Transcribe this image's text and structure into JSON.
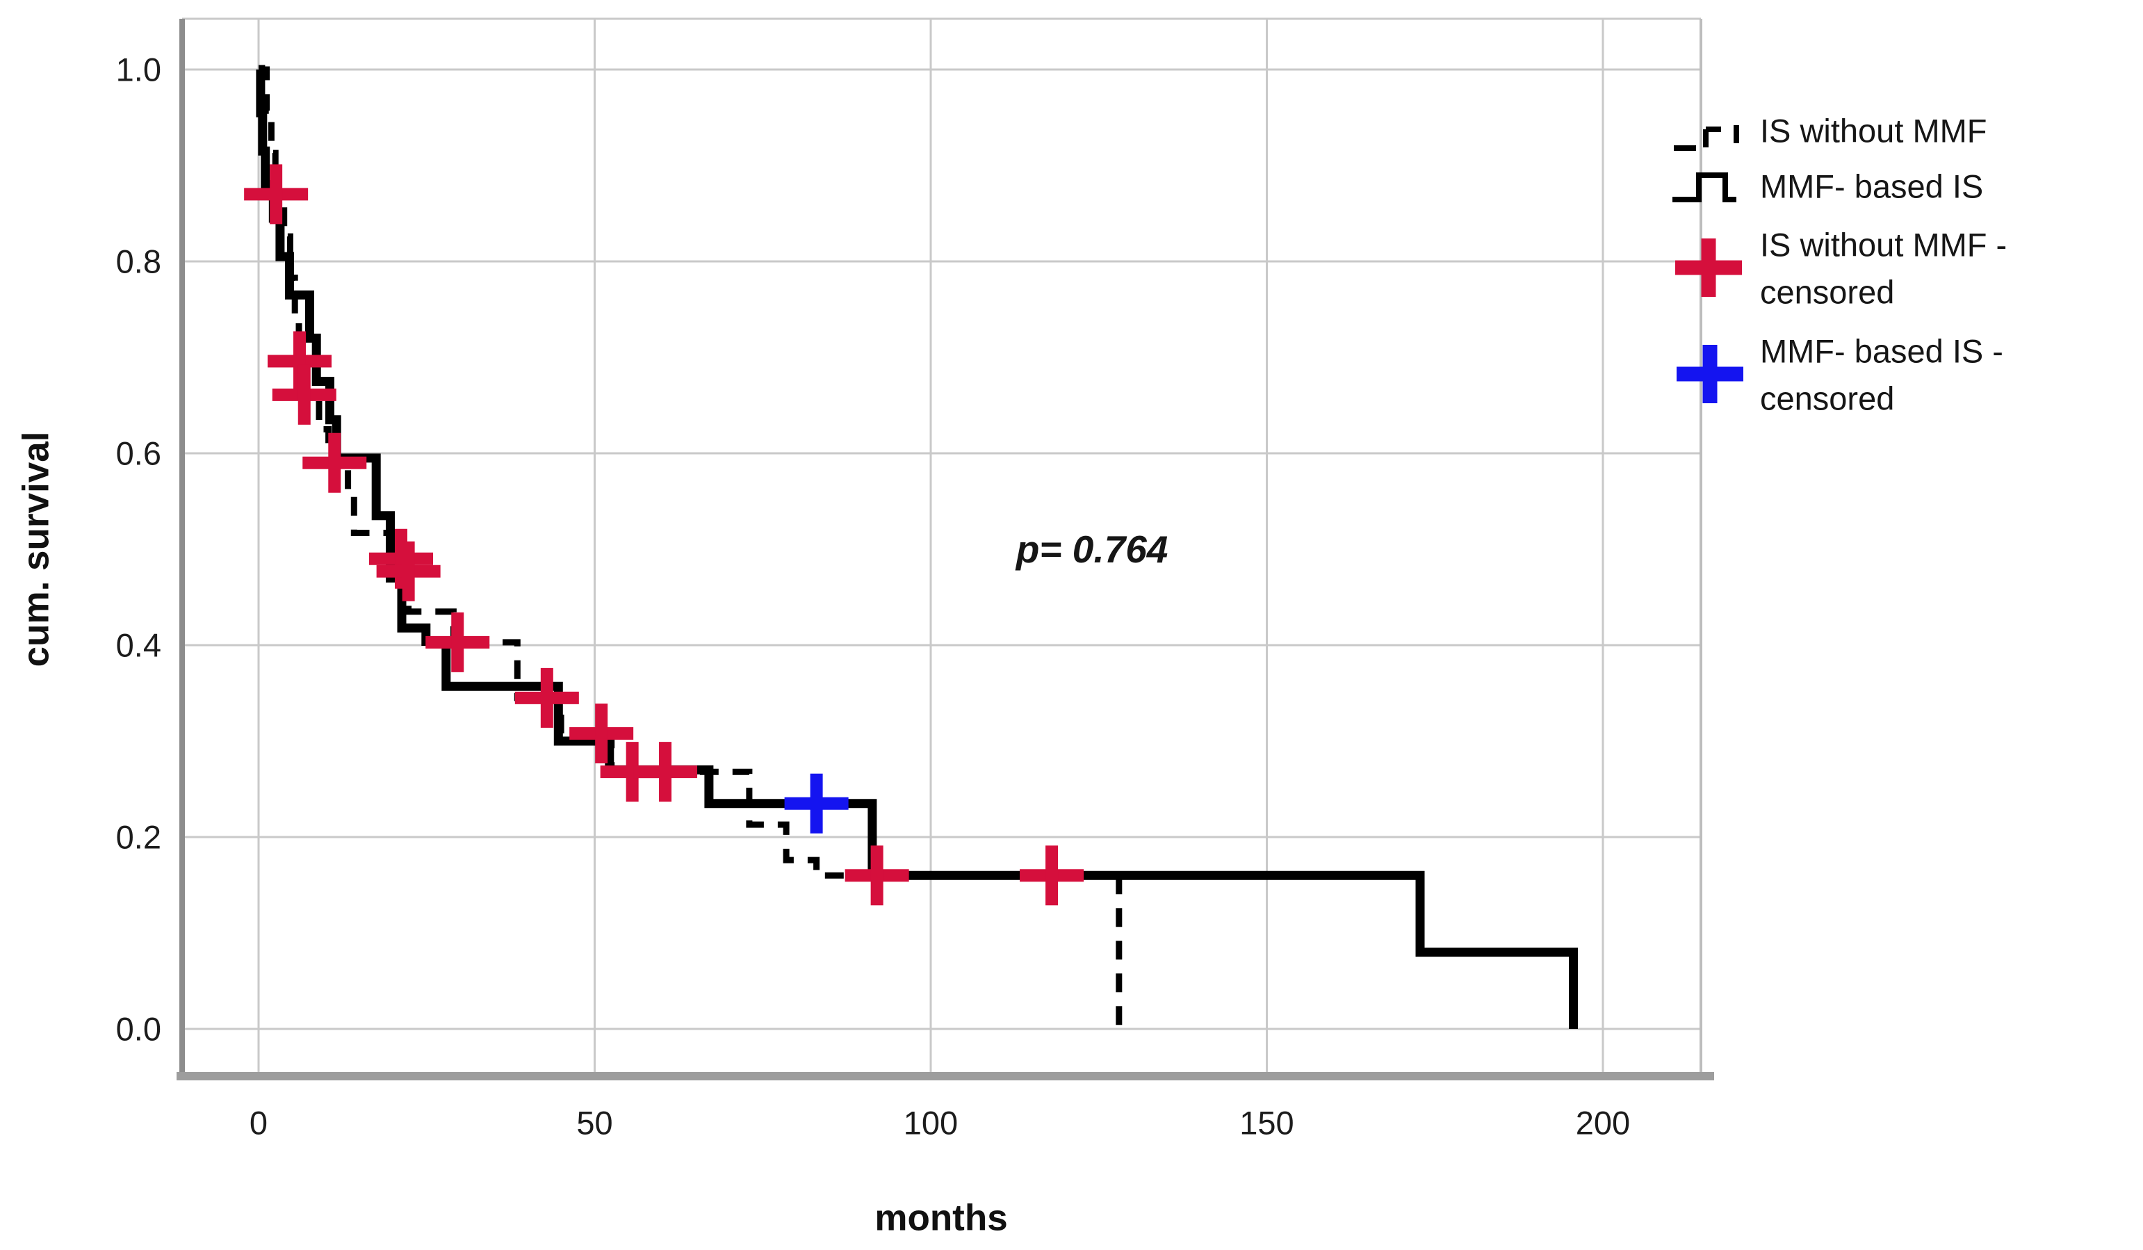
{
  "chart_data": {
    "type": "line",
    "subtype": "kaplan-meier-step",
    "title": "",
    "xlabel": "months",
    "ylabel": "cum. survival",
    "xticks": [
      0,
      50,
      100,
      150,
      200
    ],
    "xtick_labels": [
      "0",
      "50",
      "100",
      "150",
      "200"
    ],
    "yticks": [
      0.0,
      0.2,
      0.4,
      0.6,
      0.8,
      1.0
    ],
    "ytick_labels": [
      "0.0",
      "0.2",
      "0.4",
      "0.6",
      "0.8",
      "1.0"
    ],
    "xlim": [
      -11.4,
      214.6
    ],
    "ylim": [
      -0.049,
      1.053
    ],
    "grid": true,
    "legend_position": "right",
    "annotation": {
      "text": "p= 0.764",
      "months": 124,
      "survival": 0.5
    },
    "series": [
      {
        "name": "IS without MMF",
        "style": "dashed",
        "color": "#000000",
        "censor_color": "#d50f3c",
        "steps": [
          [
            0,
            1.0
          ],
          [
            1.2,
            0.957
          ],
          [
            1.9,
            0.913
          ],
          [
            2.5,
            0.87
          ],
          [
            3.8,
            0.826
          ],
          [
            4.7,
            0.783
          ],
          [
            5.4,
            0.74
          ],
          [
            6.0,
            0.696
          ],
          [
            6.7,
            0.661
          ],
          [
            9.0,
            0.625
          ],
          [
            10.4,
            0.59
          ],
          [
            13.3,
            0.555
          ],
          [
            14.2,
            0.517
          ],
          [
            20.0,
            0.49
          ],
          [
            22.3,
            0.435
          ],
          [
            29.0,
            0.403
          ],
          [
            38.5,
            0.345
          ],
          [
            45.0,
            0.308
          ],
          [
            52.5,
            0.268
          ],
          [
            73.0,
            0.213
          ],
          [
            78.5,
            0.176
          ],
          [
            83.0,
            0.16
          ],
          [
            128.0,
            0.0
          ]
        ],
        "censored": [
          [
            2.6,
            0.87
          ],
          [
            6.1,
            0.696
          ],
          [
            6.8,
            0.661
          ],
          [
            11.3,
            0.59
          ],
          [
            21.2,
            0.49
          ],
          [
            22.3,
            0.477
          ],
          [
            29.6,
            0.403
          ],
          [
            42.9,
            0.345
          ],
          [
            51.0,
            0.308
          ],
          [
            55.6,
            0.268
          ],
          [
            60.5,
            0.268
          ],
          [
            92.0,
            0.16
          ],
          [
            118.0,
            0.16
          ]
        ]
      },
      {
        "name": "MMF- based IS",
        "style": "solid",
        "color": "#000000",
        "censor_color": "#1414f0",
        "steps": [
          [
            0,
            1.0
          ],
          [
            0.3,
            0.955
          ],
          [
            0.6,
            0.915
          ],
          [
            1.0,
            0.88
          ],
          [
            2.2,
            0.845
          ],
          [
            3.2,
            0.805
          ],
          [
            4.6,
            0.765
          ],
          [
            7.6,
            0.72
          ],
          [
            8.6,
            0.675
          ],
          [
            10.6,
            0.635
          ],
          [
            11.6,
            0.595
          ],
          [
            17.5,
            0.535
          ],
          [
            19.6,
            0.47
          ],
          [
            21.3,
            0.418
          ],
          [
            24.9,
            0.404
          ],
          [
            27.9,
            0.357
          ],
          [
            44.6,
            0.3
          ],
          [
            52.2,
            0.27
          ],
          [
            67.0,
            0.235
          ],
          [
            91.3,
            0.16
          ],
          [
            172.8,
            0.08
          ],
          [
            195.6,
            0.0
          ]
        ],
        "censored": [
          [
            83.0,
            0.235
          ]
        ]
      }
    ],
    "legend": [
      {
        "line1": "IS without MMF",
        "line2": "",
        "swatch": "dashed-step",
        "color": "#000000"
      },
      {
        "line1": "MMF- based IS",
        "line2": "",
        "swatch": "solid-step",
        "color": "#000000"
      },
      {
        "line1": "IS without MMF -",
        "line2": "censored",
        "swatch": "plus",
        "color": "#d50f3c"
      },
      {
        "line1": "MMF- based IS -",
        "line2": "censored",
        "swatch": "plus",
        "color": "#1414f0"
      }
    ],
    "colors": {
      "curve": "#000000",
      "red_censor": "#d50f3c",
      "blue_censor": "#1414f0",
      "gridline": "#c9c9c9",
      "axis_line": "#8d8d8d",
      "axis_bar": "#9d9d9d"
    }
  }
}
